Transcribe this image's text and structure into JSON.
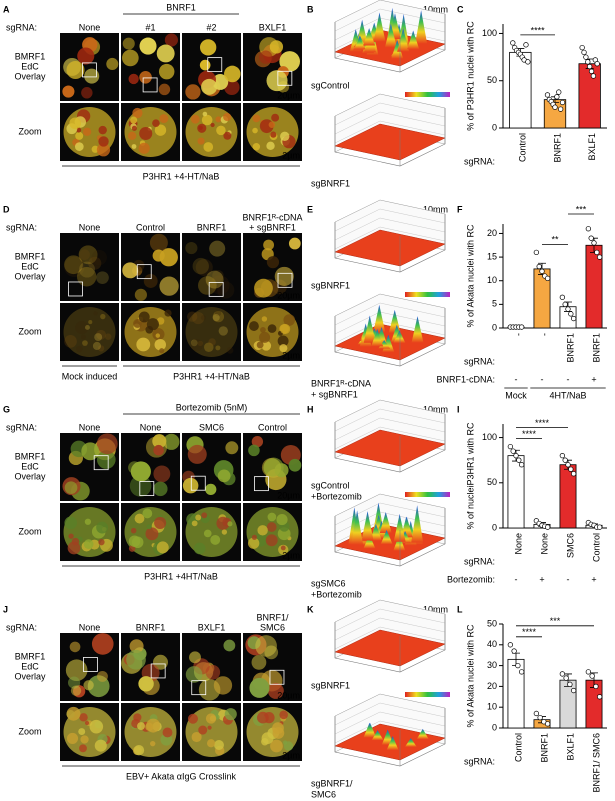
{
  "rows": [
    {
      "images": {
        "label": "A",
        "sgrna_label": "sgRNA:",
        "columns": [
          [
            "None"
          ],
          [
            "#1"
          ],
          [
            "#2"
          ],
          [
            "BXLF1"
          ]
        ],
        "groups": [
          {
            "label": "BNRF1",
            "columns": [
              1,
              2
            ]
          }
        ],
        "row_labels": [
          [
            "BMRF1",
            "EdC",
            "Overlay"
          ],
          [
            "Zoom"
          ]
        ],
        "scale_bars": [
          "20µm",
          "2µm"
        ],
        "footers": [
          {
            "label": "P3HR1 +4-HT/NaB",
            "columns": [
              0,
              1,
              2,
              3
            ]
          }
        ]
      },
      "surface": {
        "label": "B",
        "scale_bar": "10mm",
        "plots": [
          {
            "label": [
              "sgControl"
            ]
          },
          {
            "label": [
              "sgBNRF1"
            ]
          }
        ]
      },
      "chart": {
        "label": "C",
        "type": "bar",
        "ylabel": "% of P3HR1 nuclei with RC",
        "category_label": "sgRNA:",
        "categories": [
          "Control",
          "BNRF1",
          "BXLF1"
        ],
        "colors": [
          "#ffffff",
          "#f5a742",
          "#e32b2b"
        ],
        "values": [
          80,
          30,
          68
        ],
        "errors": [
          4,
          3,
          5
        ],
        "points": [
          [
            90,
            85,
            82,
            80,
            78,
            75,
            72,
            88,
            70
          ],
          [
            35,
            30,
            28,
            25,
            22,
            33,
            38,
            20,
            27
          ],
          [
            85,
            80,
            75,
            70,
            65,
            60,
            55,
            72,
            68
          ]
        ],
        "ylim": [
          0,
          110
        ],
        "yticks": [
          0,
          50,
          100
        ],
        "significance": [
          {
            "label": "****",
            "between": [
              0,
              1
            ]
          }
        ]
      }
    },
    {
      "images": {
        "label": "D",
        "sgrna_label": "sgRNA:",
        "columns": [
          [
            "None"
          ],
          [
            "Control"
          ],
          [
            "BNRF1"
          ],
          [
            "BNRF1ᴿ-cDNA",
            "+ sgBNRF1"
          ]
        ],
        "groups": [],
        "row_labels": [
          [
            "BMRF1",
            "EdC",
            "Overlay"
          ],
          [
            "Zoom"
          ]
        ],
        "scale_bars": [
          "20µm",
          "2µm"
        ],
        "footers": [
          {
            "label": "Mock induced",
            "columns": [
              0
            ]
          },
          {
            "label": "P3HR1 +4-HT/NaB",
            "columns": [
              1,
              2,
              3
            ]
          }
        ]
      },
      "surface": {
        "label": "E",
        "scale_bar": "10mm",
        "plots": [
          {
            "label": [
              "sgBNRF1"
            ]
          },
          {
            "label": [
              "BNRF1ᴿ-cDNA",
              "+ sgBNRF1"
            ]
          }
        ]
      },
      "chart": {
        "label": "F",
        "type": "bar",
        "ylabel": "% of Akata nuclei with RC",
        "category_label": "sgRNA:",
        "categories": [
          "-",
          "-",
          "BNRF1",
          "BNRF1"
        ],
        "extra_rows": [
          {
            "label": "BNRF1-cDNA:",
            "values": [
              "-",
              "-",
              "-",
              "+"
            ]
          }
        ],
        "groups": [
          {
            "label": "Mock",
            "categories": [
              0
            ]
          },
          {
            "label": "4HT/NaB",
            "categories": [
              1,
              2,
              3
            ]
          }
        ],
        "colors": [
          "#ffffff",
          "#f5a742",
          "#ffffff",
          "#e32b2b"
        ],
        "values": [
          0.2,
          12.5,
          4.5,
          17.5
        ],
        "errors": [
          0.1,
          1.2,
          1,
          1.5
        ],
        "points": [
          [
            0.2,
            0.2,
            0.2,
            0.2,
            0.2
          ],
          [
            16,
            13,
            12,
            11,
            10.5
          ],
          [
            6.5,
            5,
            4,
            3,
            2
          ],
          [
            21,
            19,
            18,
            16,
            15
          ]
        ],
        "ylim": [
          0,
          22
        ],
        "yticks": [
          0,
          5,
          10,
          15,
          20
        ],
        "significance": [
          {
            "label": "**",
            "between": [
              1,
              2
            ]
          },
          {
            "label": "***",
            "between": [
              2,
              3
            ]
          }
        ]
      }
    },
    {
      "images": {
        "label": "G",
        "sgrna_label": "sgRNA:",
        "columns": [
          [
            "None"
          ],
          [
            "None"
          ],
          [
            "SMC6"
          ],
          [
            "Control"
          ]
        ],
        "groups": [
          {
            "label": "Bortezomib (5nM)",
            "columns": [
              1,
              3
            ]
          }
        ],
        "row_labels": [
          [
            "BMRF1",
            "EdC",
            "Overlay"
          ],
          [
            "Zoom"
          ]
        ],
        "scale_bars": [
          "20µm",
          "2µm"
        ],
        "footers": [
          {
            "label": "P3HR1 +4HT/NaB",
            "columns": [
              0,
              1,
              2,
              3
            ]
          }
        ]
      },
      "surface": {
        "label": "H",
        "scale_bar": "10mm",
        "plots": [
          {
            "label": [
              "sgControl",
              "+Bortezomib"
            ]
          },
          {
            "label": [
              "sgSMC6",
              "+Bortezomib"
            ]
          }
        ]
      },
      "chart": {
        "label": "I",
        "type": "bar",
        "ylabel": "% of nucleiP3HR1 with RC",
        "category_label": "sgRNA:",
        "categories": [
          "None",
          "None",
          "SMC6",
          "Control"
        ],
        "extra_rows": [
          {
            "label": "Bortezomib:",
            "values": [
              "-",
              "+",
              "-",
              "+"
            ]
          }
        ],
        "colors": [
          "#ffffff",
          "#ffffff",
          "#e32b2b",
          "#ffffff"
        ],
        "values": [
          80,
          4,
          70,
          3
        ],
        "errors": [
          6,
          2,
          5,
          1.5
        ],
        "points": [
          [
            90,
            85,
            80,
            75,
            70
          ],
          [
            8,
            5,
            3,
            2,
            1
          ],
          [
            80,
            75,
            70,
            65,
            60
          ],
          [
            6,
            4,
            3,
            1,
            1
          ]
        ],
        "ylim": [
          0,
          115
        ],
        "yticks": [
          0,
          50,
          100
        ],
        "significance": [
          {
            "label": "****",
            "between": [
              0,
              1
            ]
          },
          {
            "label": "****",
            "between": [
              0,
              2
            ]
          }
        ]
      }
    },
    {
      "images": {
        "label": "J",
        "sgrna_label": "sgRNA:",
        "columns": [
          [
            "None"
          ],
          [
            "BNRF1"
          ],
          [
            "BXLF1"
          ],
          [
            "BNRF1/",
            "SMC6"
          ]
        ],
        "groups": [],
        "row_labels": [
          [
            "BMRF1",
            "EdC",
            "Overlay"
          ],
          [
            "Zoom"
          ]
        ],
        "scale_bars": [
          "20µm",
          "2µm"
        ],
        "footers": [
          {
            "label": "EBV+ Akata αIgG Crosslink",
            "columns": [
              0,
              1,
              2,
              3
            ]
          }
        ]
      },
      "surface": {
        "label": "K",
        "scale_bar": "10mm",
        "plots": [
          {
            "label": [
              "sgBNRF1"
            ]
          },
          {
            "label": [
              "sgBNRF1/",
              "SMC6"
            ]
          }
        ]
      },
      "chart": {
        "label": "L",
        "type": "bar",
        "ylabel": "% of  Akata nuclei with RC",
        "category_label": "sgRNA:",
        "categories": [
          "Control",
          "BNRF1",
          "BXLF1",
          "BNRF1/ SMC6"
        ],
        "colors": [
          "#ffffff",
          "#f5a742",
          "#d9d9d9",
          "#e32b2b"
        ],
        "values": [
          33,
          4,
          23,
          23
        ],
        "errors": [
          3,
          1.5,
          3,
          3.5
        ],
        "points": [
          [
            40,
            37,
            30,
            27
          ],
          [
            7,
            5,
            3,
            2
          ],
          [
            26,
            24,
            21,
            18
          ],
          [
            27,
            25,
            20,
            15
          ]
        ],
        "ylim": [
          0,
          50
        ],
        "yticks": [
          0,
          10,
          20,
          30,
          40,
          50
        ],
        "significance": [
          {
            "label": "****",
            "between": [
              0,
              1
            ]
          },
          {
            "label": "***",
            "between": [
              0,
              3
            ]
          }
        ]
      }
    }
  ]
}
